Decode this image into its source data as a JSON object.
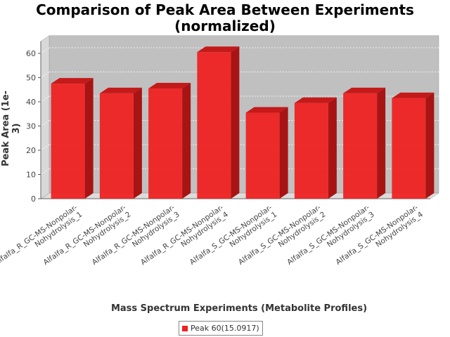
{
  "title_line1": "Comparison of Peak Area Between Experiments",
  "title_line2": "(normalized)",
  "chart_data": {
    "type": "bar",
    "title": "Comparison of Peak Area Between Experiments (normalized)",
    "xlabel": "Mass Spectrum Experiments (Metabolite Profiles)",
    "ylabel": "Peak Area (1e-3)",
    "ylim": [
      0,
      65
    ],
    "yticks": [
      0,
      10,
      20,
      30,
      40,
      50,
      60
    ],
    "grid": true,
    "legend_position": "bottom",
    "categories": [
      [
        "Alfalfa_R_GC-MS-Nonpolar-",
        "Nohydrolysis_1"
      ],
      [
        "Alfalfa_R_GC-MS-Nonpolar-",
        "Nohydrolysis_2"
      ],
      [
        "Alfalfa_R_GC-MS-Nonpolar-",
        "Nohydrolysis_3"
      ],
      [
        "Alfalfa_R_GC-MS-Nonpolar-",
        "Nohydrolysis_4"
      ],
      [
        "Alfalfa_S_GC-MS-Nonpolar-",
        "Nohydrolysis_1"
      ],
      [
        "Alfalfa_S_GC-MS-Nonpolar-",
        "Nohydrolysis_2"
      ],
      [
        "Alfalfa_S_GC-MS-Nonpolar-",
        "Nohydrolysis_3"
      ],
      [
        "Alfalfa_S_GC-MS-Nonpolar-",
        "Nohydrolysis_4"
      ]
    ],
    "series": [
      {
        "name": "Peak 60(15.0917)",
        "color": "#ee2222",
        "values": [
          47.5,
          43.5,
          45.5,
          60.5,
          35.5,
          39.5,
          43.5,
          41.5
        ]
      }
    ]
  }
}
